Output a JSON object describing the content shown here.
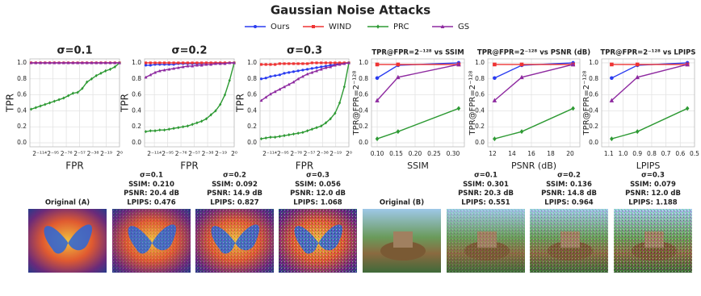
{
  "title": "Gaussian Noise Attacks",
  "chart_data": [
    {
      "type": "line",
      "title": "σ=0.1",
      "x_label": "FPR",
      "y_label": "TPR",
      "xscale": "log",
      "grid": true,
      "x": [
        1e-38,
        1e-36,
        1e-34,
        1e-32,
        1e-30,
        1e-28,
        1e-26,
        1e-24,
        1e-22,
        1e-20,
        1e-18,
        1e-16,
        1e-14,
        1e-12,
        1e-10,
        1e-08,
        1e-06,
        0.0001,
        0.01,
        1
      ],
      "xlim": [
        2.938735877055719e-39,
        1
      ],
      "xticks": [
        {
          "value": 4.81482486096809e-35,
          "label": "2⁻¹¹⁴"
        },
        {
          "value": 2.524354896707238e-29,
          "label": "2⁻⁹⁵"
        },
        {
          "value": 1.3234889800848443e-23,
          "label": "2⁻⁷⁶"
        },
        {
          "value": 6.938893903907228e-18,
          "label": "2⁻⁵⁷"
        },
        {
          "value": 3.637978807091713e-12,
          "label": "2⁻³⁸"
        },
        {
          "value": 1.9073486328125e-06,
          "label": "2⁻¹⁹"
        },
        {
          "value": 1,
          "label": "2⁰"
        }
      ],
      "ylim": [
        -0.05,
        1.05
      ],
      "yticks": [
        {
          "value": 0,
          "label": "0.0"
        },
        {
          "value": 0.2,
          "label": "0.2"
        },
        {
          "value": 0.4,
          "label": "0.4"
        },
        {
          "value": 0.6,
          "label": "0.6"
        },
        {
          "value": 0.8,
          "label": "0.8"
        },
        {
          "value": 1,
          "label": "1.0"
        }
      ],
      "series": [
        {
          "name": "Ours",
          "color": "#2a3cf0",
          "marker": "circle",
          "values": [
            1,
            1,
            1,
            1,
            1,
            1,
            1,
            1,
            1,
            1,
            1,
            1,
            1,
            1,
            1,
            1,
            1,
            1,
            1,
            1
          ]
        },
        {
          "name": "WIND",
          "color": "#ee3333",
          "marker": "square",
          "values": [
            1,
            1,
            1,
            1,
            1,
            1,
            1,
            1,
            1,
            1,
            1,
            1,
            1,
            1,
            1,
            1,
            1,
            1,
            1,
            1
          ]
        },
        {
          "name": "PRC",
          "color": "#2e9a34",
          "marker": "diamond",
          "values": [
            0.42,
            0.44,
            0.46,
            0.48,
            0.5,
            0.52,
            0.54,
            0.56,
            0.59,
            0.62,
            0.63,
            0.68,
            0.76,
            0.8,
            0.84,
            0.87,
            0.9,
            0.92,
            0.95,
            1.0
          ]
        },
        {
          "name": "GS",
          "color": "#8e2aa0",
          "marker": "triangle",
          "values": [
            1,
            1,
            1,
            1,
            1,
            1,
            1,
            1,
            1,
            1,
            1,
            1,
            1,
            1,
            1,
            1,
            1,
            1,
            1,
            1
          ]
        }
      ]
    },
    {
      "type": "line",
      "title": "σ=0.2",
      "x_label": "FPR",
      "y_label": "TPR",
      "xscale": "log",
      "grid": true,
      "x": [
        1e-38,
        1e-36,
        1e-34,
        1e-32,
        1e-30,
        1e-28,
        1e-26,
        1e-24,
        1e-22,
        1e-20,
        1e-18,
        1e-16,
        1e-14,
        1e-12,
        1e-10,
        1e-08,
        1e-06,
        0.0001,
        0.01,
        1
      ],
      "xlim": [
        2.938735877055719e-39,
        1
      ],
      "xticks": [
        {
          "value": 4.81482486096809e-35,
          "label": "2⁻¹¹⁴"
        },
        {
          "value": 2.524354896707238e-29,
          "label": "2⁻⁹⁵"
        },
        {
          "value": 1.3234889800848443e-23,
          "label": "2⁻⁷⁶"
        },
        {
          "value": 6.938893903907228e-18,
          "label": "2⁻⁵⁷"
        },
        {
          "value": 3.637978807091713e-12,
          "label": "2⁻³⁸"
        },
        {
          "value": 1.9073486328125e-06,
          "label": "2⁻¹⁹"
        },
        {
          "value": 1,
          "label": "2⁰"
        }
      ],
      "ylim": [
        -0.05,
        1.05
      ],
      "yticks": [
        {
          "value": 0,
          "label": "0.0"
        },
        {
          "value": 0.2,
          "label": "0.2"
        },
        {
          "value": 0.4,
          "label": "0.4"
        },
        {
          "value": 0.6,
          "label": "0.6"
        },
        {
          "value": 0.8,
          "label": "0.8"
        },
        {
          "value": 1,
          "label": "1.0"
        }
      ],
      "series": [
        {
          "color": "#2a3cf0",
          "marker": "circle",
          "values": [
            0.97,
            0.97,
            0.98,
            0.98,
            0.98,
            0.98,
            0.98,
            0.99,
            0.99,
            0.99,
            0.99,
            0.99,
            0.99,
            1,
            1,
            1,
            1,
            1,
            1,
            1
          ]
        },
        {
          "color": "#ee3333",
          "marker": "square",
          "values": [
            1,
            1,
            1,
            1,
            1,
            1,
            1,
            1,
            1,
            1,
            1,
            1,
            1,
            1,
            1,
            1,
            1,
            1,
            1,
            1
          ]
        },
        {
          "color": "#2e9a34",
          "marker": "diamond",
          "values": [
            0.14,
            0.15,
            0.15,
            0.16,
            0.16,
            0.17,
            0.18,
            0.19,
            0.2,
            0.21,
            0.23,
            0.25,
            0.27,
            0.3,
            0.35,
            0.4,
            0.48,
            0.6,
            0.78,
            1.0
          ]
        },
        {
          "color": "#8e2aa0",
          "marker": "triangle",
          "values": [
            0.82,
            0.85,
            0.88,
            0.9,
            0.91,
            0.92,
            0.93,
            0.94,
            0.95,
            0.96,
            0.96,
            0.97,
            0.97,
            0.98,
            0.98,
            0.99,
            0.99,
            0.99,
            1,
            1
          ]
        }
      ]
    },
    {
      "type": "line",
      "title": "σ=0.3",
      "x_label": "FPR",
      "y_label": "TPR",
      "xscale": "log",
      "grid": true,
      "x": [
        1e-38,
        1e-36,
        1e-34,
        1e-32,
        1e-30,
        1e-28,
        1e-26,
        1e-24,
        1e-22,
        1e-20,
        1e-18,
        1e-16,
        1e-14,
        1e-12,
        1e-10,
        1e-08,
        1e-06,
        0.0001,
        0.01,
        1
      ],
      "xlim": [
        2.938735877055719e-39,
        1
      ],
      "xticks": [
        {
          "value": 4.81482486096809e-35,
          "label": "2⁻¹¹⁴"
        },
        {
          "value": 2.524354896707238e-29,
          "label": "2⁻⁹⁵"
        },
        {
          "value": 1.3234889800848443e-23,
          "label": "2⁻⁷⁶"
        },
        {
          "value": 6.938893903907228e-18,
          "label": "2⁻⁵⁷"
        },
        {
          "value": 3.637978807091713e-12,
          "label": "2⁻³⁸"
        },
        {
          "value": 1.9073486328125e-06,
          "label": "2⁻¹⁹"
        },
        {
          "value": 1,
          "label": "2⁰"
        }
      ],
      "ylim": [
        -0.05,
        1.05
      ],
      "yticks": [
        {
          "value": 0,
          "label": "0.0"
        },
        {
          "value": 0.2,
          "label": "0.2"
        },
        {
          "value": 0.4,
          "label": "0.4"
        },
        {
          "value": 0.6,
          "label": "0.6"
        },
        {
          "value": 0.8,
          "label": "0.8"
        },
        {
          "value": 1,
          "label": "1.0"
        }
      ],
      "series": [
        {
          "color": "#2a3cf0",
          "marker": "circle",
          "values": [
            0.8,
            0.81,
            0.83,
            0.84,
            0.85,
            0.87,
            0.88,
            0.89,
            0.9,
            0.91,
            0.92,
            0.93,
            0.94,
            0.95,
            0.96,
            0.97,
            0.98,
            0.99,
            1,
            1
          ]
        },
        {
          "color": "#ee3333",
          "marker": "square",
          "values": [
            0.98,
            0.98,
            0.98,
            0.98,
            0.99,
            0.99,
            0.99,
            0.99,
            0.99,
            0.99,
            0.99,
            1,
            1,
            1,
            1,
            1,
            1,
            1,
            1,
            1
          ]
        },
        {
          "color": "#2e9a34",
          "marker": "diamond",
          "values": [
            0.05,
            0.06,
            0.07,
            0.07,
            0.08,
            0.09,
            0.1,
            0.11,
            0.12,
            0.13,
            0.15,
            0.17,
            0.19,
            0.21,
            0.25,
            0.3,
            0.37,
            0.5,
            0.7,
            1.0
          ]
        },
        {
          "color": "#8e2aa0",
          "marker": "triangle",
          "values": [
            0.53,
            0.57,
            0.61,
            0.64,
            0.67,
            0.7,
            0.73,
            0.76,
            0.8,
            0.83,
            0.86,
            0.88,
            0.9,
            0.92,
            0.94,
            0.95,
            0.97,
            0.98,
            0.99,
            1
          ]
        }
      ]
    },
    {
      "type": "line",
      "title": "TPR@FPR=2⁻¹²⁸ vs SSIM",
      "x_label": "SSIM",
      "y_label": "TPR@FPR=2⁻¹²⁸",
      "grid": true,
      "x": [
        0.1,
        0.155,
        0.315
      ],
      "xlim": [
        0.085,
        0.33
      ],
      "xticks": [
        {
          "value": 0.1,
          "label": "0.10"
        },
        {
          "value": 0.15,
          "label": "0.15"
        },
        {
          "value": 0.2,
          "label": "0.20"
        },
        {
          "value": 0.25,
          "label": "0.25"
        },
        {
          "value": 0.3,
          "label": "0.30"
        }
      ],
      "ylim": [
        -0.05,
        1.05
      ],
      "yticks": [
        {
          "value": 0,
          "label": "0.0"
        },
        {
          "value": 0.2,
          "label": "0.2"
        },
        {
          "value": 0.4,
          "label": "0.4"
        },
        {
          "value": 0.6,
          "label": "0.6"
        },
        {
          "value": 0.8,
          "label": "0.8"
        },
        {
          "value": 1,
          "label": "1.0"
        }
      ],
      "series": [
        {
          "color": "#2a3cf0",
          "marker": "circle",
          "values": [
            0.81,
            0.97,
            1.0
          ]
        },
        {
          "color": "#ee3333",
          "marker": "square",
          "values": [
            0.98,
            0.98,
            0.98
          ]
        },
        {
          "color": "#2e9a34",
          "marker": "diamond",
          "values": [
            0.05,
            0.14,
            0.43
          ]
        },
        {
          "color": "#8e2aa0",
          "marker": "triangle",
          "values": [
            0.53,
            0.82,
            0.98
          ]
        }
      ]
    },
    {
      "type": "line",
      "title": "TPR@FPR=2⁻¹²⁸ vs PSNR (dB)",
      "x_label": "PSNR (dB)",
      "y_label": "TPR@FPR=2⁻¹²⁸",
      "grid": true,
      "x": [
        12.2,
        15.0,
        20.3
      ],
      "xlim": [
        11.5,
        21
      ],
      "xticks": [
        12,
        14,
        16,
        18,
        20
      ],
      "ylim": [
        -0.05,
        1.05
      ],
      "yticks": [
        {
          "value": 0,
          "label": "0.0"
        },
        {
          "value": 0.2,
          "label": "0.2"
        },
        {
          "value": 0.4,
          "label": "0.4"
        },
        {
          "value": 0.6,
          "label": "0.6"
        },
        {
          "value": 0.8,
          "label": "0.8"
        },
        {
          "value": 1,
          "label": "1.0"
        }
      ],
      "series": [
        {
          "color": "#2a3cf0",
          "marker": "circle",
          "values": [
            0.81,
            0.97,
            1.0
          ]
        },
        {
          "color": "#ee3333",
          "marker": "square",
          "values": [
            0.98,
            0.98,
            0.98
          ]
        },
        {
          "color": "#2e9a34",
          "marker": "diamond",
          "values": [
            0.05,
            0.14,
            0.43
          ]
        },
        {
          "color": "#8e2aa0",
          "marker": "triangle",
          "values": [
            0.53,
            0.82,
            0.98
          ]
        }
      ]
    },
    {
      "type": "line",
      "title": "TPR@FPR=2⁻¹²⁸ vs LPIPS",
      "x_label": "LPIPS",
      "y_label": "TPR@FPR=2⁻¹²⁸",
      "grid": true,
      "x": [
        1.08,
        0.9,
        0.55
      ],
      "xlim": [
        1.15,
        0.5
      ],
      "xticks": [
        1.1,
        {
          "value": 1,
          "label": "1.0"
        },
        0.9,
        0.8,
        0.7,
        0.6,
        0.5
      ],
      "ylim": [
        -0.05,
        1.05
      ],
      "yticks": [
        {
          "value": 0,
          "label": "0.0"
        },
        {
          "value": 0.2,
          "label": "0.2"
        },
        {
          "value": 0.4,
          "label": "0.4"
        },
        {
          "value": 0.6,
          "label": "0.6"
        },
        {
          "value": 0.8,
          "label": "0.8"
        },
        {
          "value": 1,
          "label": "1.0"
        }
      ],
      "series": [
        {
          "color": "#2a3cf0",
          "marker": "circle",
          "values": [
            0.81,
            0.97,
            1.0
          ]
        },
        {
          "color": "#ee3333",
          "marker": "square",
          "values": [
            0.98,
            0.98,
            0.98
          ]
        },
        {
          "color": "#2e9a34",
          "marker": "diamond",
          "values": [
            0.05,
            0.14,
            0.43
          ]
        },
        {
          "color": "#8e2aa0",
          "marker": "triangle",
          "values": [
            0.53,
            0.82,
            0.98
          ]
        }
      ]
    }
  ],
  "images": [
    {
      "caption": [
        "Original (A)"
      ]
    },
    {
      "caption": [
        "σ=0.1",
        "SSIM: 0.210",
        "PSNR: 20.4 dB",
        "LPIPS: 0.476"
      ]
    },
    {
      "caption": [
        "σ=0.2",
        "SSIM: 0.092",
        "PSNR: 14.9 dB",
        "LPIPS: 0.827"
      ]
    },
    {
      "caption": [
        "σ=0.3",
        "SSIM: 0.056",
        "PSNR: 12.0 dB",
        "LPIPS: 1.068"
      ]
    },
    {
      "caption": [
        "Original (B)"
      ]
    },
    {
      "caption": [
        "σ=0.1",
        "SSIM: 0.301",
        "PSNR: 20.3 dB",
        "LPIPS: 0.551"
      ]
    },
    {
      "caption": [
        "σ=0.2",
        "SSIM: 0.136",
        "PSNR: 14.8 dB",
        "LPIPS: 0.964"
      ]
    },
    {
      "caption": [
        "σ=0.3",
        "SSIM: 0.079",
        "PSNR: 12.0 dB",
        "LPIPS: 1.188"
      ]
    }
  ]
}
